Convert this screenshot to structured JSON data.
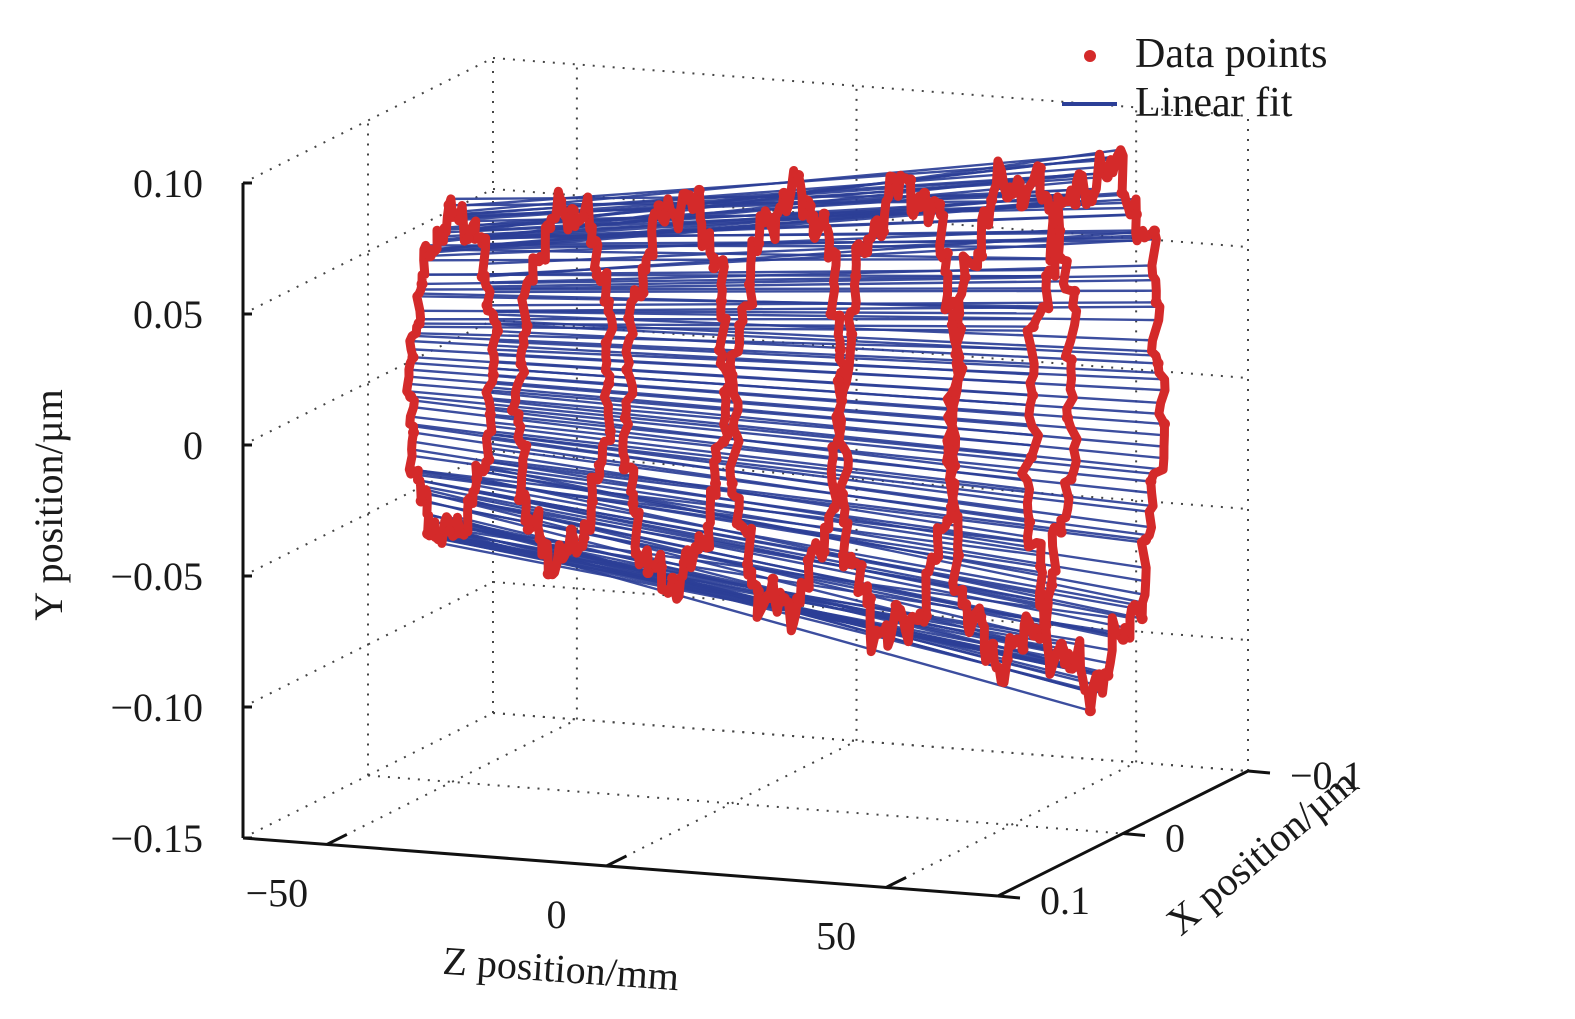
{
  "chart_data": {
    "type": "scatter",
    "projection": "3d",
    "xlabel": "Z position/mm",
    "ylabel": "Y position/µm",
    "zlabel": "X position/µm",
    "z_axis": {
      "range": [
        -65,
        70
      ],
      "ticks": [
        -50,
        0,
        50
      ],
      "tick_labels": [
        "−50",
        "0",
        "50"
      ]
    },
    "y_axis": {
      "range": [
        -0.15,
        0.1
      ],
      "ticks": [
        0.1,
        0.05,
        0,
        -0.05,
        -0.1,
        -0.15
      ],
      "tick_labels": [
        "0.10",
        "0.05",
        "0",
        "−0.05",
        "−0.10",
        "−0.15"
      ]
    },
    "x_axis": {
      "range": [
        -0.1,
        0.1
      ],
      "ticks": [
        -0.1,
        0,
        0.1
      ],
      "tick_labels": [
        "−0.1",
        "0",
        "0.1"
      ]
    },
    "grid": true,
    "legend": {
      "position": "top-right",
      "entries": [
        {
          "name": "Data points",
          "marker": "dot",
          "color": "#d42a2a"
        },
        {
          "name": "Linear fit",
          "marker": "line",
          "color": "#2c3f97"
        }
      ]
    },
    "series": [
      {
        "name": "Data points",
        "kind": "profiles",
        "sections": [
          {
            "z": -50,
            "radius_um": 0.06
          },
          {
            "z": -30,
            "radius_um": 0.066
          },
          {
            "z": -10,
            "radius_um": 0.072
          },
          {
            "z": 10,
            "radius_um": 0.078
          },
          {
            "z": 30,
            "radius_um": 0.084
          },
          {
            "z": 50,
            "radius_um": 0.09
          },
          {
            "z": 65,
            "radius_um": 0.096
          }
        ]
      },
      {
        "name": "Linear fit",
        "kind": "generator_lines",
        "z_range": [
          -50,
          65
        ],
        "line_count": 150
      }
    ]
  }
}
